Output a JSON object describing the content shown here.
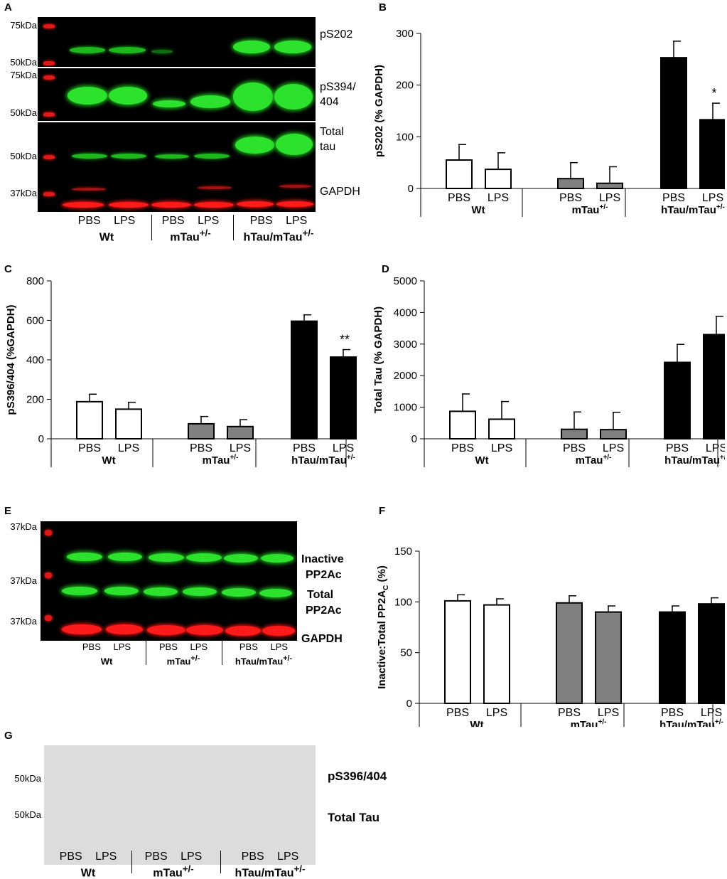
{
  "panels": {
    "A": "A",
    "B": "B",
    "C": "C",
    "D": "D",
    "E": "E",
    "F": "F",
    "G": "G"
  },
  "groups": [
    {
      "conditions": "PBS LPS",
      "genotype": "Wt",
      "sup": ""
    },
    {
      "conditions": "PBS LPS",
      "genotype": "mTau",
      "sup": "+/-"
    },
    {
      "conditions": "PBS LPS",
      "genotype": "hTau/mTau",
      "sup": "+/-"
    }
  ],
  "blotA": {
    "markers": [
      "75kDa",
      "50kDa",
      "75kDa",
      "50kDa",
      "50kDa",
      "37kDa"
    ],
    "labels": [
      "pS202",
      "pS394/",
      "404",
      "Total",
      "tau",
      "GAPDH"
    ]
  },
  "blotE": {
    "markers": [
      "37kDa",
      "37kDa",
      "37kDa"
    ],
    "labels": [
      "Inactive",
      "PP2Ac",
      "Total",
      "PP2Ac",
      "GAPDH"
    ]
  },
  "blotG": {
    "markers": [
      "50kDa",
      "50kDa"
    ],
    "labels": [
      "pS396/404",
      "Total Tau"
    ]
  },
  "colors": {
    "wt": "#ffffff",
    "mtau": "#808080",
    "htau": "#000000",
    "green": "#2de22d",
    "red": "#ff1a1a"
  },
  "chart_data": [
    {
      "panel": "B",
      "type": "bar",
      "ylabel": "pS202 (% GAPDH)",
      "ylim": [
        0,
        300
      ],
      "yticks": [
        0,
        100,
        200,
        300
      ],
      "categories": [
        "PBS",
        "LPS",
        "PBS",
        "LPS",
        "PBS",
        "LPS"
      ],
      "values": [
        55,
        37,
        19,
        10,
        253,
        133
      ],
      "errors": [
        30,
        32,
        31,
        32,
        32,
        32
      ],
      "annotations": [
        {
          "index": 5,
          "text": "*"
        }
      ]
    },
    {
      "panel": "C",
      "type": "bar",
      "ylabel": "pS396/404 (%GAPDH)",
      "ylim": [
        0,
        800
      ],
      "yticks": [
        0,
        200,
        400,
        600,
        800
      ],
      "categories": [
        "PBS",
        "LPS",
        "PBS",
        "LPS",
        "PBS",
        "LPS"
      ],
      "values": [
        188,
        150,
        76,
        62,
        596,
        414
      ],
      "errors": [
        38,
        35,
        37,
        35,
        32,
        38
      ],
      "annotations": [
        {
          "index": 5,
          "text": "**"
        }
      ]
    },
    {
      "panel": "D",
      "type": "bar",
      "ylabel": "Total Tau (% GAPDH)",
      "ylim": [
        0,
        5000
      ],
      "yticks": [
        0,
        1000,
        2000,
        3000,
        4000,
        5000
      ],
      "categories": [
        "PBS",
        "LPS",
        "PBS",
        "LPS",
        "PBS",
        "LPS"
      ],
      "values": [
        870,
        620,
        300,
        290,
        2420,
        3300
      ],
      "errors": [
        550,
        560,
        550,
        550,
        570,
        580
      ],
      "annotations": []
    },
    {
      "panel": "F",
      "type": "bar",
      "ylabel": "Inactive:Total PP2A",
      "ylabel_sub": "C",
      "ylabel_suffix": " (%)",
      "ylim": [
        0,
        150
      ],
      "yticks": [
        0,
        50,
        100,
        150
      ],
      "categories": [
        "PBS",
        "LPS",
        "PBS",
        "LPS",
        "PBS",
        "LPS"
      ],
      "values": [
        101,
        97,
        99,
        90,
        90,
        98
      ],
      "errors": [
        6,
        6,
        7,
        6,
        6,
        6
      ],
      "annotations": []
    }
  ]
}
